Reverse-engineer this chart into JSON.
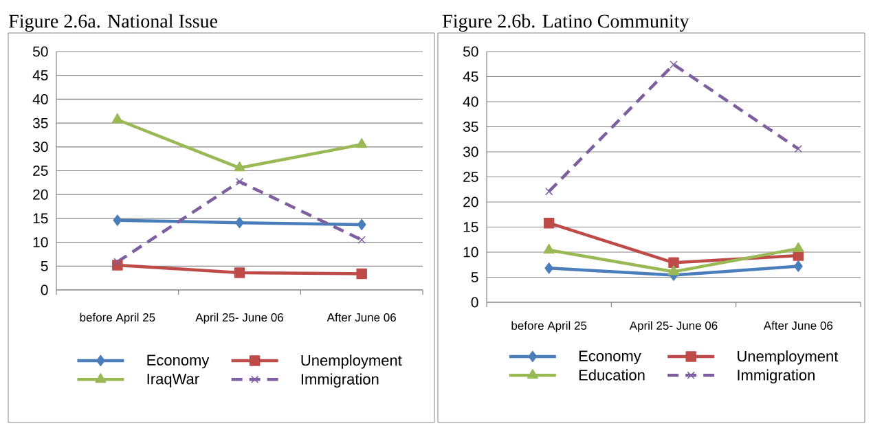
{
  "chart_data": [
    {
      "type": "line",
      "title": "Figure 2.6a. National Issue",
      "categories": [
        "before April 25",
        "April 25- June 06",
        "After June 06"
      ],
      "ylim": [
        0,
        50
      ],
      "yticks": [
        0,
        5,
        10,
        15,
        20,
        25,
        30,
        35,
        40,
        45,
        50
      ],
      "grid": "y",
      "legend": "bottom",
      "series": [
        {
          "name": "Economy",
          "color": "#4a7ebb",
          "marker": "diamond",
          "line_style": "solid",
          "values": [
            14.6,
            14.1,
            13.7
          ]
        },
        {
          "name": "Unemployment",
          "color": "#be4b48",
          "marker": "square",
          "line_style": "solid",
          "values": [
            5.2,
            3.6,
            3.4
          ]
        },
        {
          "name": "IraqWar",
          "color": "#98b954",
          "marker": "triangle",
          "line_style": "solid",
          "values": [
            35.7,
            25.6,
            30.5
          ]
        },
        {
          "name": "Immigration",
          "color": "#7d5fa0",
          "marker": "cross",
          "line_style": "dashed",
          "values": [
            5.9,
            22.7,
            10.5
          ]
        }
      ]
    },
    {
      "type": "line",
      "title": "Figure 2.6b. Latino Community",
      "categories": [
        "before April 25",
        "April 25- June 06",
        "After June 06"
      ],
      "ylim": [
        0,
        50
      ],
      "yticks": [
        0,
        5,
        10,
        15,
        20,
        25,
        30,
        35,
        40,
        45,
        50
      ],
      "grid": "y",
      "legend": "bottom",
      "series": [
        {
          "name": "Economy",
          "color": "#4a7ebb",
          "marker": "diamond",
          "line_style": "solid",
          "values": [
            6.8,
            5.4,
            7.2
          ]
        },
        {
          "name": "Unemployment",
          "color": "#be4b48",
          "marker": "square",
          "line_style": "solid",
          "values": [
            15.8,
            7.9,
            9.3
          ]
        },
        {
          "name": "Education",
          "color": "#98b954",
          "marker": "triangle",
          "line_style": "solid",
          "values": [
            10.4,
            6.1,
            10.7
          ]
        },
        {
          "name": "Immigration",
          "color": "#7d5fa0",
          "marker": "cross",
          "line_style": "dashed",
          "values": [
            22.1,
            47.4,
            30.6
          ]
        }
      ]
    }
  ]
}
